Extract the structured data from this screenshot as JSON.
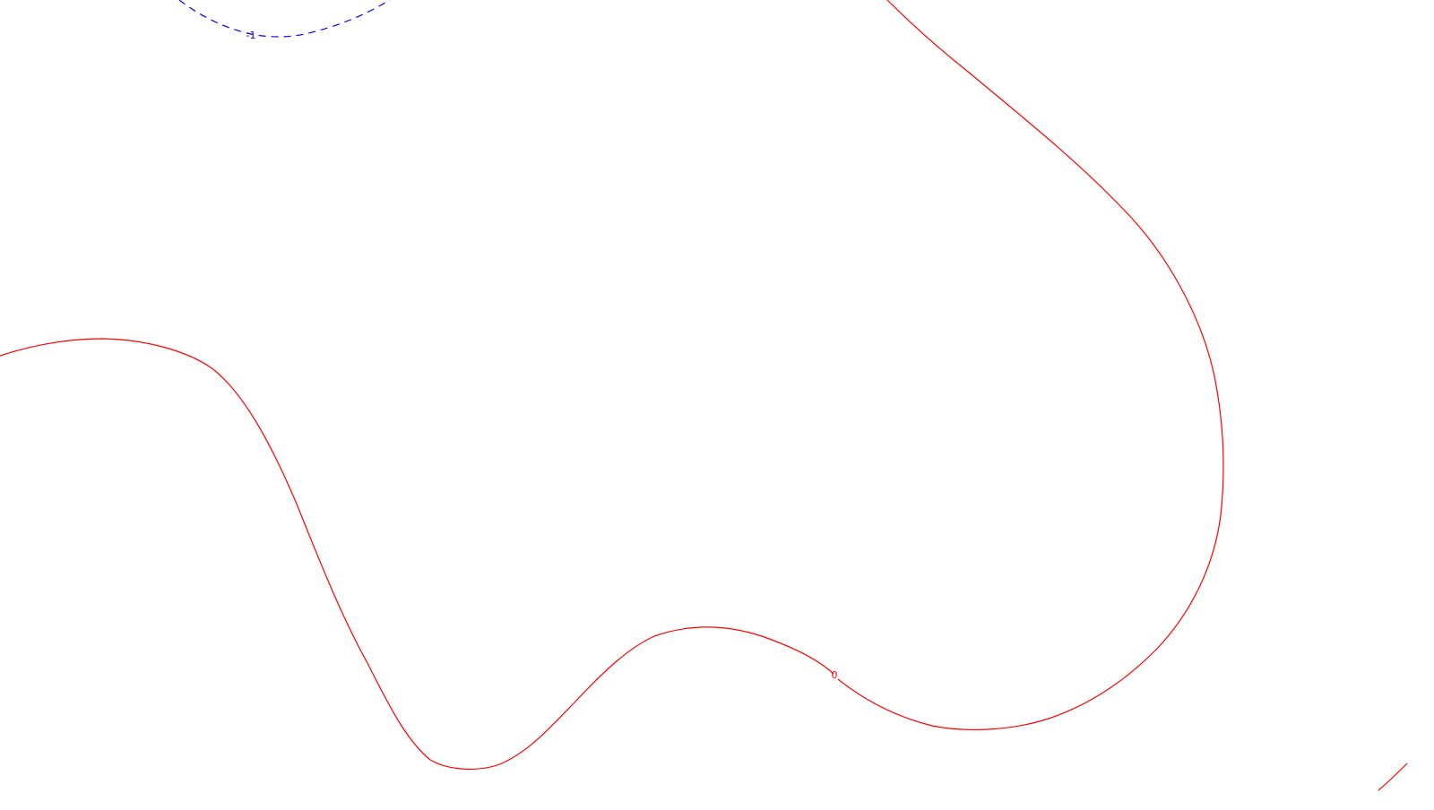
{
  "chart_data": {
    "type": "contour",
    "title": "",
    "xlabel": "",
    "ylabel": "",
    "grid": false,
    "legend": "none",
    "contours": [
      {
        "level": "0",
        "label": "0",
        "color": "#ff0000",
        "dash": "solid"
      },
      {
        "level": "-1",
        "label": "-1",
        "color": "#0000ff",
        "dash": "dashed"
      }
    ]
  }
}
